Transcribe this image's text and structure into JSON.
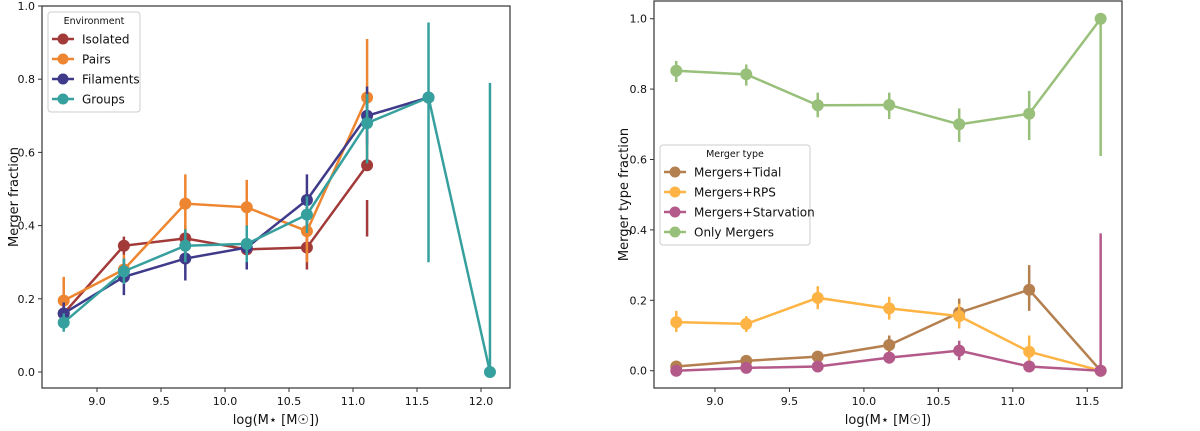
{
  "chart_data": [
    {
      "type": "line",
      "xlabel": "log(M⋆ [M☉])",
      "ylabel": "Merger fraction",
      "xlim": [
        8.58,
        12.23
      ],
      "ylim": [
        -0.05,
        1.0
      ],
      "xticks": [
        "9.0",
        "9.5",
        "10.0",
        "10.5",
        "11.0",
        "11.5",
        "12.0"
      ],
      "yticks": [
        "0.0",
        "0.2",
        "0.4",
        "0.6",
        "0.8",
        "1.0"
      ],
      "legend": {
        "title": "Environment",
        "position": "top-left"
      },
      "x": [
        8.74,
        9.21,
        9.69,
        10.17,
        10.64,
        11.11,
        11.59,
        12.07
      ],
      "series": [
        {
          "name": "Isolated",
          "color": "#a33a3a",
          "values": [
            0.16,
            0.345,
            0.365,
            0.335,
            0.34,
            0.565,
            null,
            null
          ],
          "err_low": [
            0.14,
            0.32,
            0.33,
            0.31,
            0.28,
            0.37,
            null,
            null
          ],
          "err_high": [
            0.18,
            0.37,
            0.4,
            0.36,
            0.4,
            0.47,
            null,
            null
          ]
        },
        {
          "name": "Pairs",
          "color": "#ee8530",
          "values": [
            0.195,
            0.28,
            0.46,
            0.45,
            0.385,
            0.75,
            null,
            null
          ],
          "err_low": [
            0.13,
            0.24,
            0.38,
            0.37,
            0.3,
            0.58,
            null,
            null
          ],
          "err_high": [
            0.26,
            0.32,
            0.54,
            0.525,
            0.46,
            0.91,
            null,
            null
          ]
        },
        {
          "name": "Filaments",
          "color": "#3f3a8a",
          "values": [
            0.16,
            0.26,
            0.31,
            0.34,
            0.47,
            0.7,
            0.75,
            null
          ],
          "err_low": [
            0.13,
            0.21,
            0.25,
            0.28,
            0.4,
            0.62,
            0.75,
            null
          ],
          "err_high": [
            0.19,
            0.31,
            0.37,
            0.4,
            0.54,
            0.78,
            0.75,
            null
          ]
        },
        {
          "name": "Groups",
          "color": "#36a09e",
          "values": [
            0.135,
            0.275,
            0.345,
            0.35,
            0.43,
            0.68,
            0.75,
            0.0
          ],
          "err_low": [
            0.11,
            0.24,
            0.3,
            0.3,
            0.38,
            0.57,
            0.3,
            0.0
          ],
          "err_high": [
            0.16,
            0.31,
            0.39,
            0.4,
            0.48,
            0.76,
            0.955,
            0.79
          ]
        }
      ]
    },
    {
      "type": "line",
      "xlabel": "log(M⋆ [M☉])",
      "ylabel": "Merger type fraction",
      "xlim": [
        8.63,
        11.65
      ],
      "ylim": [
        -0.05,
        1.05
      ],
      "xticks": [
        "9.0",
        "9.5",
        "10.0",
        "10.5",
        "11.0",
        "11.5"
      ],
      "yticks": [
        "0.0",
        "0.2",
        "0.4",
        "0.6",
        "0.8",
        "1.0"
      ],
      "legend": {
        "title": "Merger type",
        "position": "center-left"
      },
      "x": [
        8.74,
        9.21,
        9.69,
        10.17,
        10.64,
        11.11,
        11.59
      ],
      "series": [
        {
          "name": "Mergers+Tidal",
          "color": "#b5804f",
          "values": [
            0.012,
            0.028,
            0.04,
            0.073,
            0.165,
            0.23,
            0.0
          ],
          "err_low": [
            0.0,
            0.015,
            0.025,
            0.05,
            0.13,
            0.17,
            0.0
          ],
          "err_high": [
            0.025,
            0.04,
            0.055,
            0.1,
            0.205,
            0.3,
            0.0
          ]
        },
        {
          "name": "Mergers+RPS",
          "color": "#fdb444",
          "values": [
            0.138,
            0.133,
            0.207,
            0.177,
            0.155,
            0.054,
            0.0
          ],
          "err_low": [
            0.11,
            0.11,
            0.175,
            0.145,
            0.12,
            0.02,
            0.0
          ],
          "err_high": [
            0.17,
            0.155,
            0.24,
            0.21,
            0.19,
            0.1,
            0.0
          ]
        },
        {
          "name": "Mergers+Starvation",
          "color": "#b45a8b",
          "values": [
            0.0,
            0.008,
            0.012,
            0.037,
            0.057,
            0.012,
            0.0
          ],
          "err_low": [
            0.0,
            0.0,
            0.0,
            0.02,
            0.03,
            0.0,
            0.0
          ],
          "err_high": [
            0.01,
            0.02,
            0.025,
            0.055,
            0.085,
            0.025,
            0.39
          ]
        },
        {
          "name": "Only Mergers",
          "color": "#99c07a",
          "values": [
            0.852,
            0.842,
            0.754,
            0.755,
            0.7,
            0.73,
            1.0
          ],
          "err_low": [
            0.82,
            0.81,
            0.72,
            0.715,
            0.65,
            0.655,
            0.61
          ],
          "err_high": [
            0.88,
            0.87,
            0.79,
            0.79,
            0.745,
            0.795,
            1.0
          ]
        }
      ]
    }
  ]
}
